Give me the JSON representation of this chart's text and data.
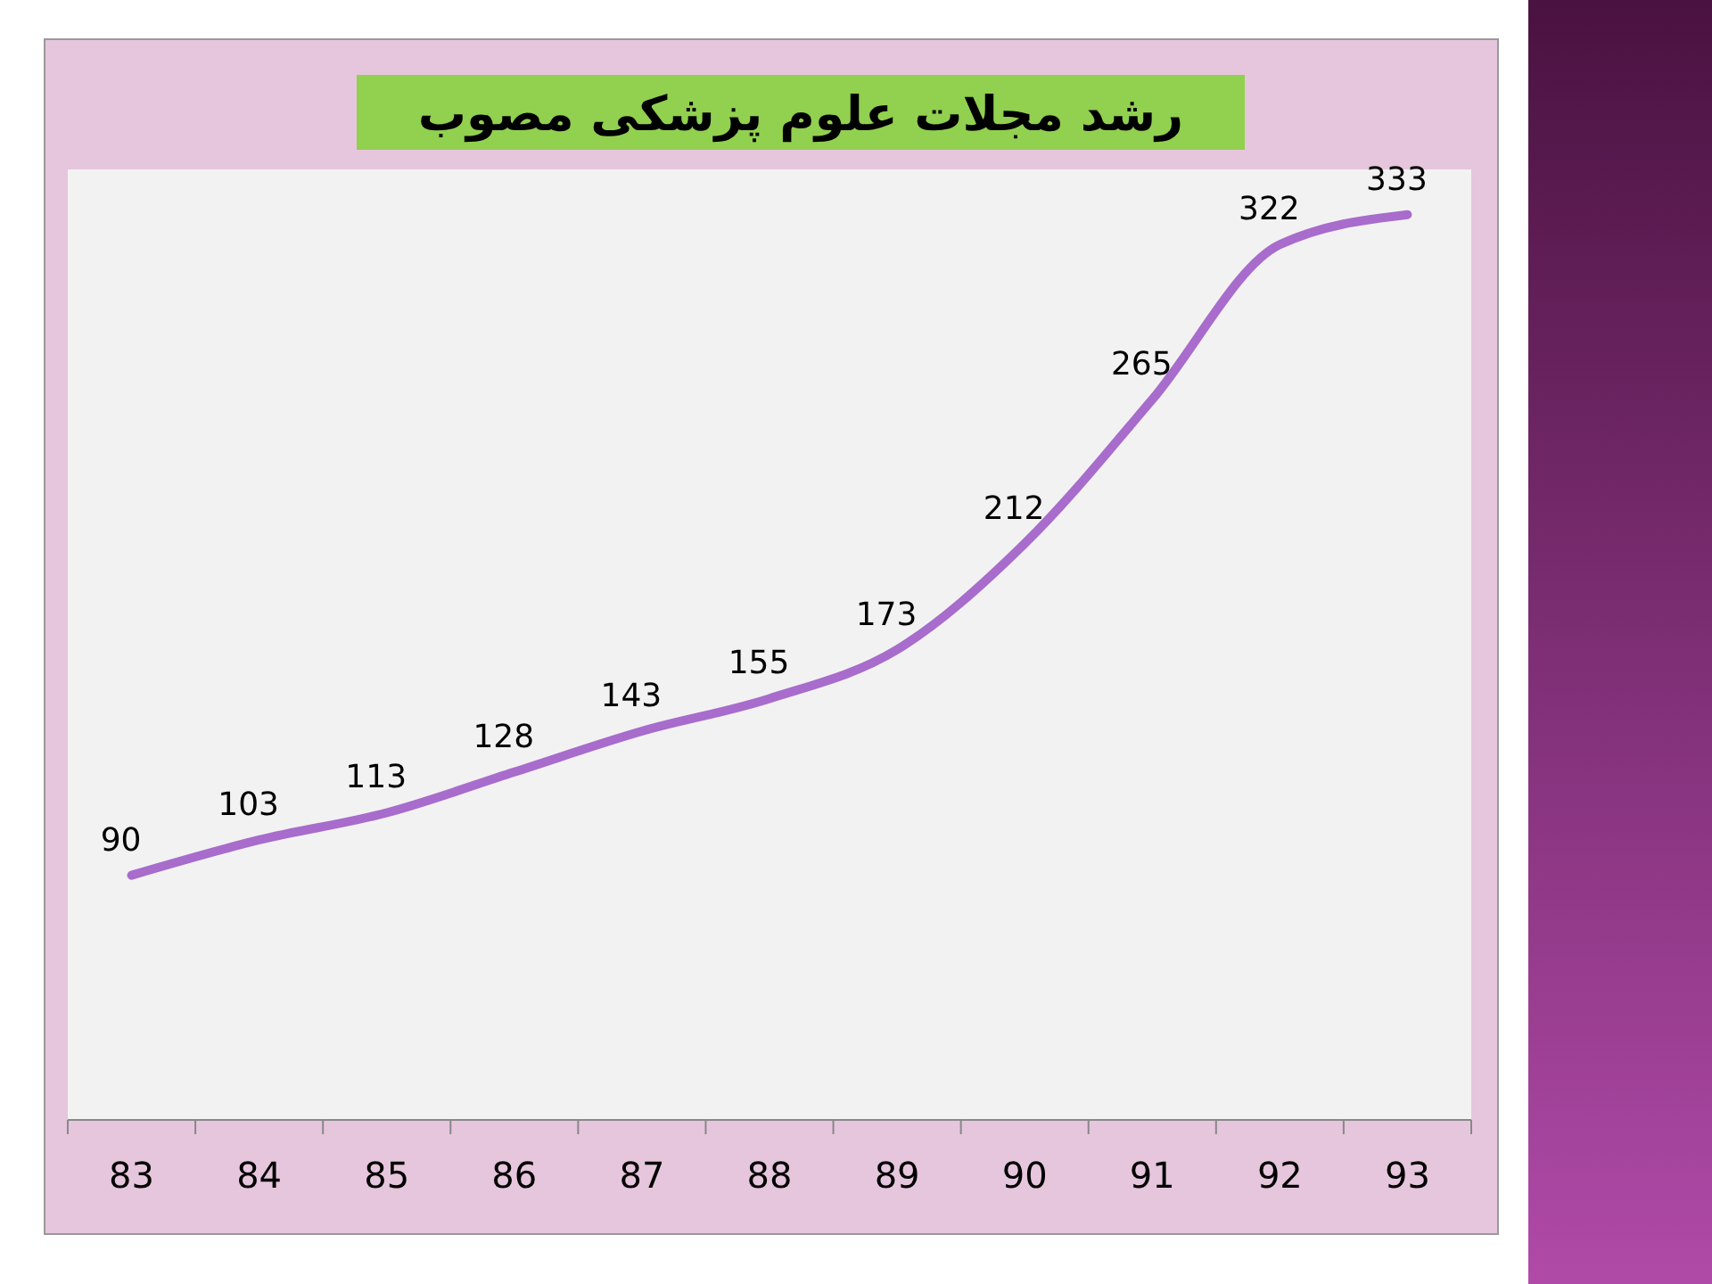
{
  "chart_data": {
    "type": "line",
    "title": "رشد مجلات علوم پزشکی مصوب",
    "categories": [
      "83",
      "84",
      "85",
      "86",
      "87",
      "88",
      "89",
      "90",
      "91",
      "92",
      "93"
    ],
    "series": [
      {
        "color": "#a86ccc",
        "values": [
          90,
          103,
          113,
          128,
          143,
          155,
          173,
          212,
          265,
          322,
          333
        ]
      }
    ],
    "data_labels": true,
    "marker": "none",
    "line_style": "solid"
  }
}
